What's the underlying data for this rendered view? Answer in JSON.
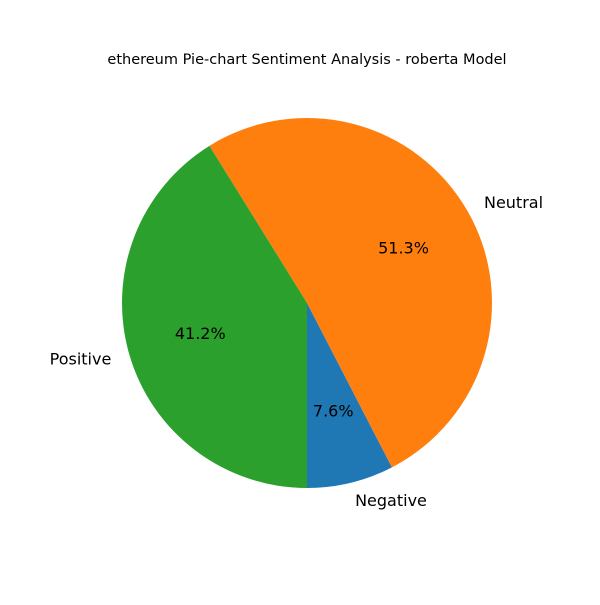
{
  "chart_data": {
    "type": "pie",
    "title": "ethereum Pie-chart Sentiment Analysis - roberta Model",
    "categories": [
      "Negative",
      "Neutral",
      "Positive"
    ],
    "values": [
      7.6,
      51.3,
      41.2
    ],
    "value_labels": [
      "7.6%",
      "51.3%",
      "41.2%"
    ],
    "colors": [
      "#1f77b4",
      "#ff7f0e",
      "#2ca02c"
    ],
    "start_angle_deg": -90,
    "direction": "counterclockwise",
    "legend": "none"
  }
}
